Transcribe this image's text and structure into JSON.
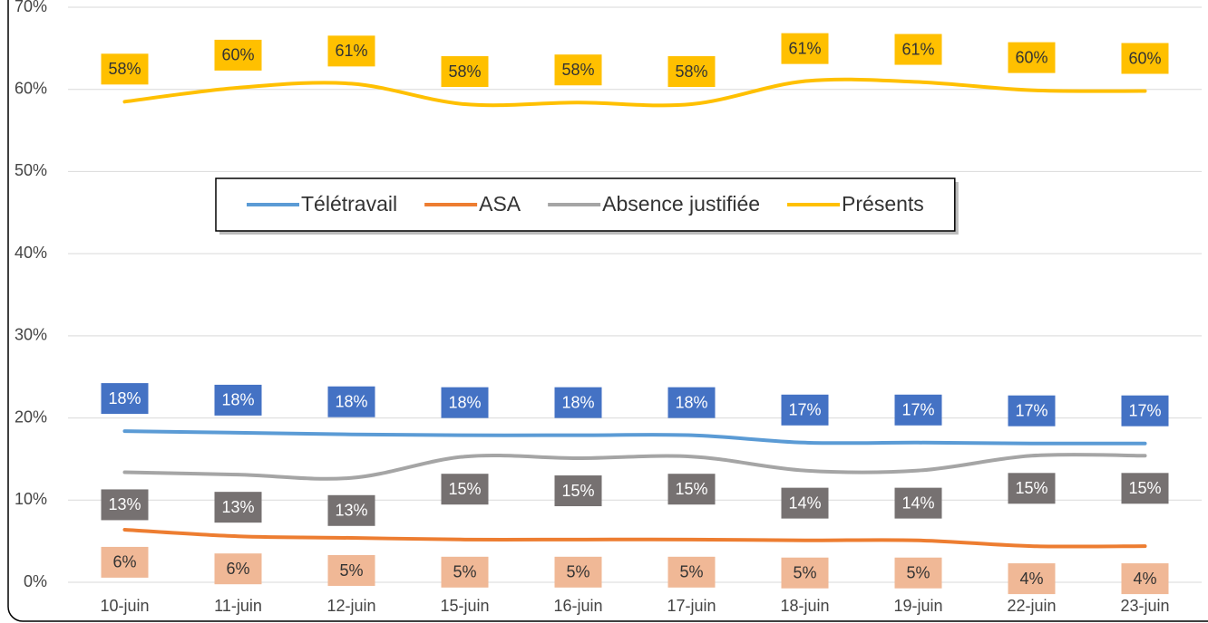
{
  "chart_data": {
    "type": "line",
    "categories": [
      "10-juin",
      "11-juin",
      "12-juin",
      "15-juin",
      "16-juin",
      "17-juin",
      "18-juin",
      "19-juin",
      "22-juin",
      "23-juin"
    ],
    "ylim": [
      0,
      70
    ],
    "yticks": [
      {
        "value": 0,
        "label": "0%"
      },
      {
        "value": 10,
        "label": "10%"
      },
      {
        "value": 20,
        "label": "20%"
      },
      {
        "value": 30,
        "label": "30%"
      },
      {
        "value": 40,
        "label": "40%"
      },
      {
        "value": 50,
        "label": "50%"
      },
      {
        "value": 60,
        "label": "60%"
      },
      {
        "value": 70,
        "label": "70%"
      }
    ],
    "grid": true,
    "legend_position": "center",
    "series": [
      {
        "name": "Télétravail",
        "color": "#5b9bd5",
        "label_color": "#4472c4",
        "label_text_color": "#ffffff",
        "label_side": "above",
        "values": [
          18.4,
          18.2,
          18.0,
          17.9,
          17.9,
          17.9,
          17.0,
          17.0,
          16.9,
          16.9
        ],
        "value_labels": [
          "18%",
          "18%",
          "18%",
          "18%",
          "18%",
          "18%",
          "17%",
          "17%",
          "17%",
          "17%"
        ]
      },
      {
        "name": "ASA",
        "color": "#ed7d31",
        "label_color": "#f0b896",
        "label_text_color": "#333333",
        "label_side": "below",
        "values": [
          6.4,
          5.6,
          5.4,
          5.2,
          5.2,
          5.2,
          5.1,
          5.1,
          4.4,
          4.4
        ],
        "value_labels": [
          "6%",
          "6%",
          "5%",
          "5%",
          "5%",
          "5%",
          "5%",
          "5%",
          "4%",
          "4%"
        ]
      },
      {
        "name": "Absence justifiée",
        "color": "#a5a5a5",
        "label_color": "#767171",
        "label_text_color": "#ffffff",
        "label_side": "below",
        "values": [
          13.4,
          13.1,
          12.7,
          15.3,
          15.1,
          15.3,
          13.6,
          13.6,
          15.4,
          15.4
        ],
        "value_labels": [
          "13%",
          "13%",
          "13%",
          "15%",
          "15%",
          "15%",
          "14%",
          "14%",
          "15%",
          "15%"
        ]
      },
      {
        "name": "Présents",
        "color": "#ffc000",
        "label_color": "#ffc000",
        "label_text_color": "#333333",
        "label_side": "above",
        "values": [
          58.5,
          60.2,
          60.7,
          58.2,
          58.4,
          58.2,
          61.0,
          60.9,
          59.9,
          59.8
        ],
        "value_labels": [
          "58%",
          "60%",
          "61%",
          "58%",
          "58%",
          "58%",
          "61%",
          "61%",
          "60%",
          "60%"
        ]
      }
    ]
  }
}
